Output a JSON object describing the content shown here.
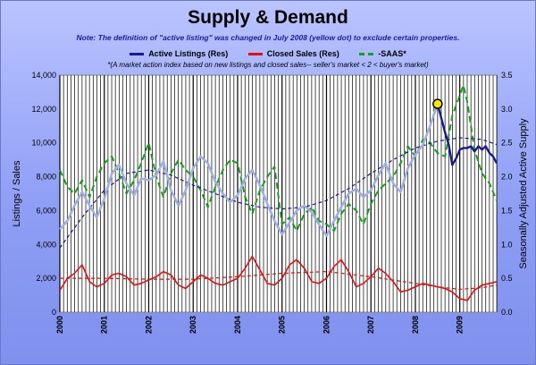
{
  "chart_data": {
    "type": "line",
    "title": "Supply & Demand",
    "subtitle": "Note: The definition of \"active listing\" was changed in July 2008 (yellow dot) to exclude certain properties.",
    "footnote": "*(A market action index based on new listings and closed sales-- seller's market < 2 < buyer's market)",
    "ylabel_left": "Listings / Sales",
    "ylabel_right": "Seasonally Adjusted Active Supply",
    "ylim_left": [
      0,
      14000
    ],
    "ylim_right": [
      0,
      3.5
    ],
    "left_ticks": [
      "0",
      "2,000",
      "4,000",
      "6,000",
      "8,000",
      "10,000",
      "12,000",
      "14,000"
    ],
    "right_ticks": [
      "0.0",
      "0.5",
      "1.0",
      "1.5",
      "2.0",
      "2.5",
      "3.0",
      "3.5"
    ],
    "x_labels": [
      "2000",
      "2001",
      "2002",
      "2003",
      "2004",
      "2005",
      "2006",
      "2007",
      "2008",
      "2009"
    ],
    "x_range": [
      2000.0,
      2009.83
    ],
    "grid": "vertical monthly lines",
    "legend_position": "top",
    "series": [
      {
        "name": "Active Listings (Res)",
        "color": "#9fb0e0",
        "axis": "left",
        "x": [
          2000.0,
          2000.17,
          2000.33,
          2000.5,
          2000.67,
          2000.83,
          2001.0,
          2001.17,
          2001.33,
          2001.5,
          2001.67,
          2001.83,
          2002.0,
          2002.17,
          2002.33,
          2002.5,
          2002.67,
          2002.83,
          2003.0,
          2003.17,
          2003.33,
          2003.5,
          2003.67,
          2003.83,
          2004.0,
          2004.17,
          2004.33,
          2004.5,
          2004.67,
          2004.83,
          2005.0,
          2005.17,
          2005.33,
          2005.5,
          2005.67,
          2005.83,
          2006.0,
          2006.17,
          2006.33,
          2006.5,
          2006.67,
          2006.83,
          2007.0,
          2007.17,
          2007.33,
          2007.5,
          2007.67,
          2007.83,
          2008.0,
          2008.17,
          2008.33,
          2008.5
        ],
        "y": [
          4900,
          5400,
          6300,
          7100,
          6300,
          5600,
          6700,
          8200,
          8700,
          7600,
          6900,
          7900,
          7800,
          8100,
          8900,
          7200,
          6300,
          7200,
          8500,
          9200,
          8800,
          7700,
          7000,
          6500,
          6900,
          7900,
          8400,
          7500,
          6400,
          5400,
          4600,
          5300,
          6000,
          6300,
          5900,
          5200,
          4500,
          5400,
          6200,
          7000,
          7300,
          6800,
          7200,
          8100,
          8800,
          7600,
          7100,
          8500,
          9300,
          9900,
          11000,
          12300
        ]
      },
      {
        "name": "Active Listings (Res) - new definition",
        "color": "#1a1a8c",
        "axis": "left",
        "x": [
          2008.5,
          2008.58,
          2008.67,
          2008.75,
          2008.83,
          2008.92,
          2009.0,
          2009.08,
          2009.17,
          2009.25,
          2009.33,
          2009.42,
          2009.5,
          2009.58,
          2009.67,
          2009.75,
          2009.83
        ],
        "y": [
          12300,
          11500,
          10600,
          9900,
          8700,
          9100,
          9600,
          9700,
          9700,
          9800,
          9500,
          9800,
          9600,
          9800,
          9400,
          9200,
          8800
        ]
      },
      {
        "name": "Closed Sales (Res)",
        "color": "#e01010",
        "axis": "left",
        "x": [
          2000.0,
          2000.17,
          2000.33,
          2000.5,
          2000.67,
          2000.83,
          2001.0,
          2001.17,
          2001.33,
          2001.5,
          2001.67,
          2001.83,
          2002.0,
          2002.17,
          2002.33,
          2002.5,
          2002.67,
          2002.83,
          2003.0,
          2003.17,
          2003.33,
          2003.5,
          2003.67,
          2003.83,
          2004.0,
          2004.17,
          2004.33,
          2004.5,
          2004.67,
          2004.83,
          2005.0,
          2005.17,
          2005.33,
          2005.5,
          2005.67,
          2005.83,
          2006.0,
          2006.17,
          2006.33,
          2006.5,
          2006.67,
          2006.83,
          2007.0,
          2007.17,
          2007.33,
          2007.5,
          2007.67,
          2007.83,
          2008.0,
          2008.17,
          2008.33,
          2008.5,
          2008.67,
          2008.83,
          2009.0,
          2009.17,
          2009.33,
          2009.5,
          2009.67,
          2009.83
        ],
        "y": [
          1300,
          2000,
          2300,
          2800,
          1800,
          1500,
          1700,
          2200,
          2300,
          2100,
          1600,
          1700,
          1900,
          2100,
          2400,
          2200,
          1600,
          1400,
          1800,
          2200,
          2000,
          1700,
          1600,
          1800,
          2000,
          2600,
          3300,
          2500,
          1700,
          1600,
          2000,
          2800,
          3100,
          2600,
          1800,
          1700,
          2000,
          2700,
          3100,
          2400,
          1500,
          1700,
          2100,
          2600,
          2300,
          1800,
          1200,
          1300,
          1500,
          1700,
          1600,
          1500,
          1400,
          1200,
          800,
          700,
          1300,
          1600,
          1700,
          1800
        ]
      },
      {
        "name": "Active Listings trend",
        "color": "#1a1a8c",
        "dashed": true,
        "axis": "left",
        "x": [
          2000.0,
          2000.5,
          2001.0,
          2001.5,
          2002.0,
          2002.5,
          2003.0,
          2003.5,
          2004.0,
          2004.5,
          2005.0,
          2005.5,
          2006.0,
          2006.5,
          2007.0,
          2007.5,
          2008.0,
          2008.5,
          2009.0,
          2009.5,
          2009.83
        ],
        "y": [
          3800,
          5600,
          7200,
          8200,
          8400,
          8100,
          7500,
          7000,
          6500,
          6200,
          6100,
          6200,
          6600,
          7300,
          8200,
          9000,
          9700,
          10100,
          10300,
          10200,
          9900
        ]
      },
      {
        "name": "Closed Sales trend",
        "color": "#e01010",
        "dashed": true,
        "axis": "left",
        "x": [
          2000.0,
          2001.0,
          2002.0,
          2003.0,
          2004.0,
          2005.0,
          2006.0,
          2007.0,
          2008.0,
          2008.5,
          2009.0,
          2009.5,
          2009.83
        ],
        "y": [
          2000,
          2000,
          1950,
          1950,
          2100,
          2300,
          2400,
          2100,
          1700,
          1500,
          1350,
          1450,
          1600
        ]
      },
      {
        "name": "-SAAS*",
        "color": "#18a018",
        "dashed": true,
        "axis": "right",
        "x": [
          2000.0,
          2000.17,
          2000.33,
          2000.5,
          2000.67,
          2000.83,
          2001.0,
          2001.17,
          2001.33,
          2001.5,
          2001.67,
          2001.83,
          2002.0,
          2002.17,
          2002.33,
          2002.5,
          2002.67,
          2002.83,
          2003.0,
          2003.17,
          2003.33,
          2003.5,
          2003.67,
          2003.83,
          2004.0,
          2004.17,
          2004.33,
          2004.5,
          2004.67,
          2004.83,
          2005.0,
          2005.17,
          2005.33,
          2005.5,
          2005.67,
          2005.83,
          2006.0,
          2006.17,
          2006.33,
          2006.5,
          2006.67,
          2006.83,
          2007.0,
          2007.17,
          2007.33,
          2007.5,
          2007.67,
          2007.83,
          2008.0,
          2008.17,
          2008.33,
          2008.5,
          2008.67,
          2008.83,
          2009.0,
          2009.08,
          2009.17,
          2009.33,
          2009.5,
          2009.67,
          2009.83
        ],
        "y": [
          2.1,
          1.85,
          1.75,
          1.95,
          1.7,
          2.0,
          2.2,
          2.3,
          2.05,
          1.75,
          1.95,
          2.2,
          2.5,
          2.0,
          1.7,
          2.05,
          2.25,
          2.1,
          2.0,
          1.8,
          1.55,
          1.85,
          2.1,
          2.25,
          2.2,
          1.7,
          1.45,
          1.8,
          2.0,
          2.15,
          1.3,
          1.4,
          1.2,
          1.45,
          1.55,
          1.35,
          1.3,
          1.2,
          1.45,
          1.6,
          1.5,
          1.3,
          1.6,
          1.8,
          1.9,
          2.0,
          2.2,
          2.45,
          2.3,
          2.55,
          2.5,
          2.35,
          2.3,
          2.9,
          3.2,
          3.35,
          3.1,
          2.4,
          2.05,
          1.9,
          1.65
        ]
      }
    ],
    "markers": [
      {
        "label": "yellow dot",
        "x": 2008.5,
        "y": 12300,
        "color": "#f5e800"
      }
    ]
  },
  "legend": [
    {
      "label": "Active Listings (Res)",
      "color": "#1a1a8c",
      "dashed": false
    },
    {
      "label": "Closed Sales (Res)",
      "color": "#e01010",
      "dashed": false
    },
    {
      "label": "-SAAS*",
      "color": "#18a018",
      "dashed": true
    }
  ]
}
